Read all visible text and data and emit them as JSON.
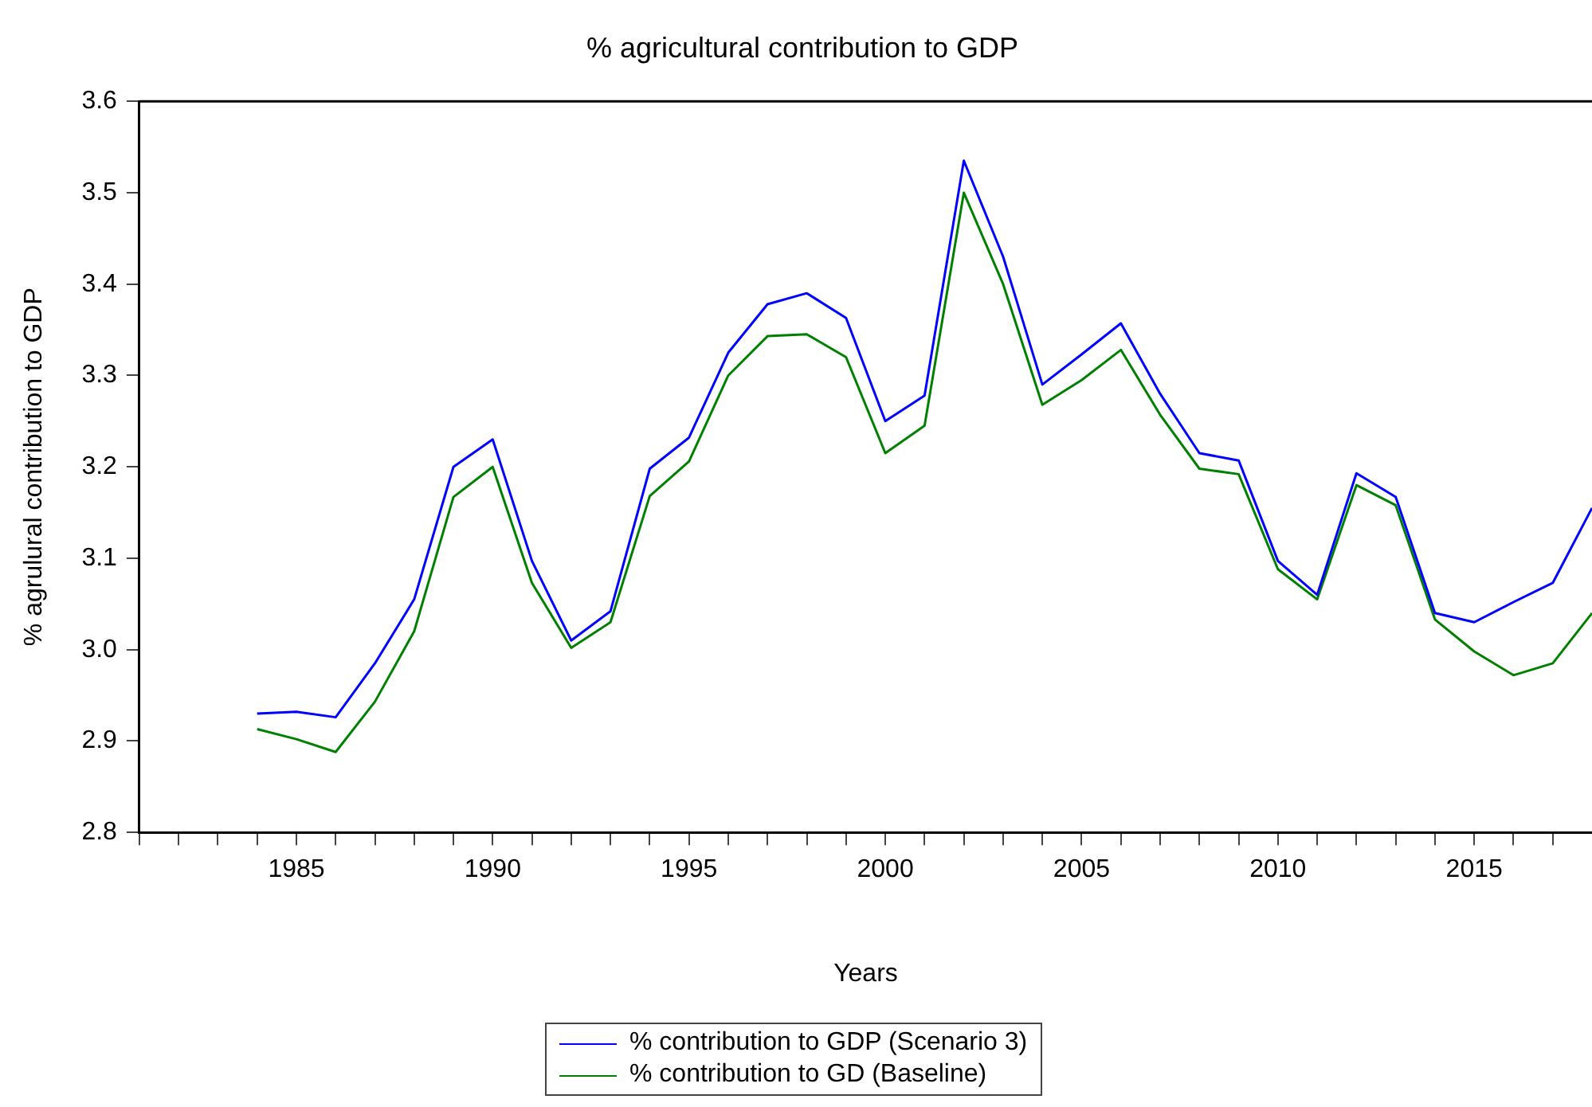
{
  "chart_data": {
    "type": "line",
    "title": "% agricultural contribution to GDP",
    "xlabel": "Years",
    "ylabel": "% agrulural contribution to GDP",
    "x": [
      1984,
      1985,
      1986,
      1987,
      1988,
      1989,
      1990,
      1991,
      1992,
      1993,
      1994,
      1995,
      1996,
      1997,
      1998,
      1999,
      2000,
      2001,
      2002,
      2003,
      2004,
      2005,
      2006,
      2007,
      2008,
      2009,
      2010,
      2011,
      2012,
      2013,
      2014,
      2015,
      2016,
      2017,
      2018
    ],
    "series": [
      {
        "name": "% contribution to GDP (Scenario 3)",
        "color": "#0000ff",
        "values": [
          2.93,
          2.932,
          2.926,
          2.985,
          3.055,
          3.2,
          3.23,
          3.097,
          3.01,
          3.042,
          3.198,
          3.232,
          3.325,
          3.378,
          3.39,
          3.363,
          3.25,
          3.278,
          3.535,
          3.43,
          3.29,
          3.323,
          3.357,
          3.28,
          3.215,
          3.207,
          3.097,
          3.06,
          3.193,
          3.167,
          3.04,
          3.03,
          3.052,
          3.073,
          3.155
        ]
      },
      {
        "name": "% contribution to GD (Baseline)",
        "color": "#008000",
        "values": [
          2.913,
          2.902,
          2.888,
          2.943,
          3.02,
          3.167,
          3.2,
          3.073,
          3.002,
          3.03,
          3.168,
          3.206,
          3.3,
          3.343,
          3.345,
          3.32,
          3.215,
          3.245,
          3.5,
          3.4,
          3.268,
          3.295,
          3.328,
          3.257,
          3.198,
          3.192,
          3.088,
          3.055,
          3.18,
          3.158,
          3.033,
          2.998,
          2.972,
          2.985,
          3.04
        ]
      }
    ],
    "xlim": [
      1981,
      2018
    ],
    "xticks": [
      {
        "value": 1981,
        "label": null
      },
      {
        "value": 1982,
        "label": null
      },
      {
        "value": 1983,
        "label": null
      },
      {
        "value": 1984,
        "label": null
      },
      1985,
      {
        "value": 1986,
        "label": null
      },
      {
        "value": 1987,
        "label": null
      },
      {
        "value": 1988,
        "label": null
      },
      {
        "value": 1989,
        "label": null
      },
      1990,
      {
        "value": 1991,
        "label": null
      },
      {
        "value": 1992,
        "label": null
      },
      {
        "value": 1993,
        "label": null
      },
      {
        "value": 1994,
        "label": null
      },
      1995,
      {
        "value": 1996,
        "label": null
      },
      {
        "value": 1997,
        "label": null
      },
      {
        "value": 1998,
        "label": null
      },
      {
        "value": 1999,
        "label": null
      },
      2000,
      {
        "value": 2001,
        "label": null
      },
      {
        "value": 2002,
        "label": null
      },
      {
        "value": 2003,
        "label": null
      },
      {
        "value": 2004,
        "label": null
      },
      2005,
      {
        "value": 2006,
        "label": null
      },
      {
        "value": 2007,
        "label": null
      },
      {
        "value": 2008,
        "label": null
      },
      {
        "value": 2009,
        "label": null
      },
      2010,
      {
        "value": 2011,
        "label": null
      },
      {
        "value": 2012,
        "label": null
      },
      {
        "value": 2013,
        "label": null
      },
      {
        "value": 2014,
        "label": null
      },
      2015,
      {
        "value": 2016,
        "label": null
      },
      {
        "value": 2017,
        "label": null
      }
    ],
    "ylim": [
      2.8,
      3.6
    ],
    "yticks": [
      2.8,
      {
        "value": 2.9,
        "label": "2.9"
      },
      {
        "value": 3,
        "label": "3.0"
      },
      3.1,
      3.2,
      3.3,
      3.4,
      3.5,
      3.6
    ],
    "grid": false,
    "legend": "bottom",
    "marker": "none",
    "line_style": "solid"
  }
}
